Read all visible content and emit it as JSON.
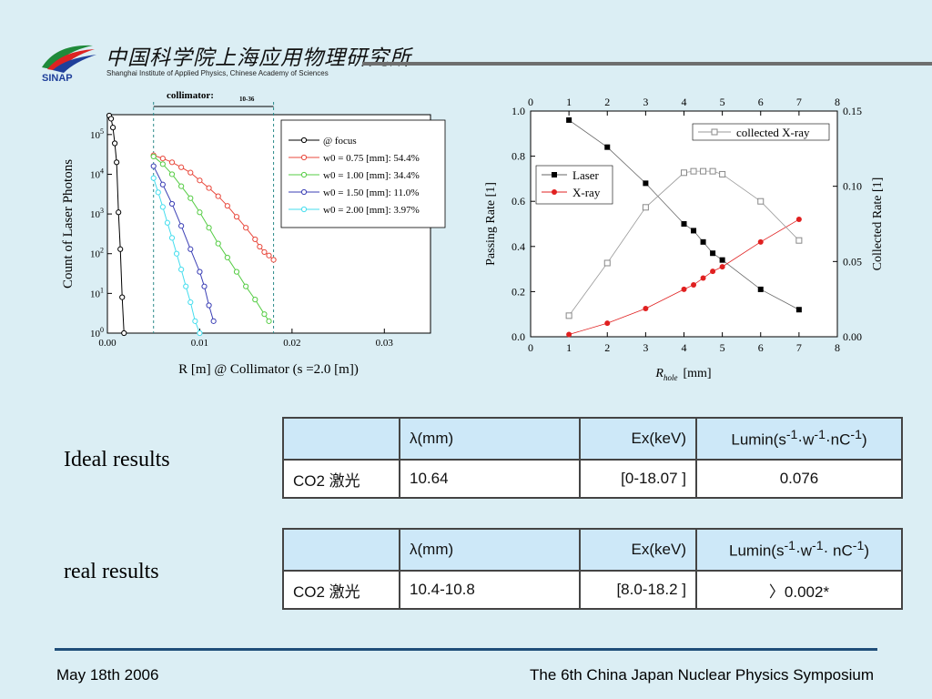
{
  "header": {
    "logo_text": "SINAP",
    "institute_cn": "中国科学院上海应用物理研究所",
    "institute_en": "Shanghai Institute of Applied Physics, Chinese Academy of Sciences"
  },
  "colors": {
    "background": "#dbeef4",
    "table_header": "#cde8f8",
    "footer_line": "#1f4e79",
    "header_line": "#6e6e6e"
  },
  "chart_data": [
    {
      "type": "scatter",
      "title": "",
      "annotation": "collimator:",
      "annotation_sub": "10-36",
      "xlabel": "R [m] @ Collimator (s =2.0 [m])",
      "ylabel": "Count of Laser Photons",
      "xlim": [
        0,
        0.035
      ],
      "ylim": [
        1,
        300000
      ],
      "yscale": "log",
      "xticks": [
        "0.00",
        "0.01",
        "0.02",
        "0.03"
      ],
      "yticks": [
        "10^0",
        "10^1",
        "10^2",
        "10^3",
        "10^4",
        "10^5"
      ],
      "vertical_lines_x": [
        0.005,
        0.018
      ],
      "legend_position": "top-right",
      "series": [
        {
          "name": "@ focus",
          "color": "#000000",
          "x": [
            0.0002,
            0.0004,
            0.0006,
            0.0008,
            0.001,
            0.0012,
            0.0014,
            0.0016,
            0.0018
          ],
          "y": [
            300000,
            250000,
            150000,
            60000,
            20000,
            1100,
            130,
            8,
            1
          ]
        },
        {
          "name": "w0 = 0.75 [mm]: 54.4%",
          "color": "#e8483c",
          "x": [
            0.005,
            0.006,
            0.007,
            0.008,
            0.009,
            0.01,
            0.011,
            0.012,
            0.013,
            0.014,
            0.015,
            0.016,
            0.0165,
            0.017,
            0.0175,
            0.018
          ],
          "y": [
            30000,
            25000,
            20000,
            15000,
            11000,
            7000,
            4500,
            2800,
            1600,
            850,
            450,
            230,
            150,
            110,
            90,
            70
          ]
        },
        {
          "name": "w0 = 1.00 [mm]: 34.4%",
          "color": "#55cc44",
          "x": [
            0.005,
            0.006,
            0.007,
            0.008,
            0.009,
            0.01,
            0.011,
            0.012,
            0.013,
            0.014,
            0.015,
            0.016,
            0.017,
            0.0175
          ],
          "y": [
            28000,
            18000,
            10000,
            5000,
            2500,
            1100,
            450,
            180,
            80,
            35,
            15,
            7,
            3,
            2
          ]
        },
        {
          "name": "w0 = 1.50 [mm]: 11.0%",
          "color": "#3b3fb5",
          "x": [
            0.005,
            0.006,
            0.007,
            0.008,
            0.009,
            0.01,
            0.0105,
            0.011,
            0.0115
          ],
          "y": [
            16000,
            5500,
            1800,
            500,
            130,
            35,
            15,
            5,
            2
          ]
        },
        {
          "name": "w0 = 2.00 [mm]: 3.97%",
          "color": "#44ddee",
          "x": [
            0.005,
            0.0055,
            0.006,
            0.0065,
            0.007,
            0.0075,
            0.008,
            0.0085,
            0.009,
            0.0095,
            0.01
          ],
          "y": [
            8000,
            3500,
            1500,
            600,
            250,
            100,
            40,
            15,
            6,
            2,
            1
          ]
        }
      ]
    },
    {
      "type": "line",
      "title": "",
      "xlabel": "Rhole [mm]",
      "xlabel_main": "R",
      "xlabel_sub": "hole",
      "xlabel_unit": "[mm]",
      "ylabel": "Passing Rate [1]",
      "ylabel_right": "Collected Rate [1]",
      "xlim": [
        0,
        8
      ],
      "ylim": [
        0,
        1.0
      ],
      "ylim_right": [
        0,
        0.15
      ],
      "xticks": [
        "0",
        "1",
        "2",
        "3",
        "4",
        "5",
        "6",
        "7",
        "8"
      ],
      "yticks": [
        "0.0",
        "0.2",
        "0.4",
        "0.6",
        "0.8",
        "1.0"
      ],
      "yticks_right": [
        "0.00",
        "0.05",
        "0.10",
        "0.15"
      ],
      "series": [
        {
          "name": "Laser",
          "axis": "left",
          "color": "#000000",
          "marker": "square-filled",
          "x": [
            1,
            2,
            3,
            4,
            4.25,
            4.5,
            4.75,
            5,
            6,
            7
          ],
          "y": [
            0.96,
            0.84,
            0.68,
            0.5,
            0.47,
            0.42,
            0.37,
            0.34,
            0.21,
            0.12
          ]
        },
        {
          "name": "X-ray",
          "axis": "left",
          "color": "#e02020",
          "marker": "circle-filled",
          "x": [
            1,
            2,
            3,
            4,
            4.25,
            4.5,
            4.75,
            5,
            6,
            7
          ],
          "y": [
            0.01,
            0.06,
            0.125,
            0.21,
            0.23,
            0.26,
            0.29,
            0.31,
            0.42,
            0.52
          ]
        },
        {
          "name": "collected X-ray",
          "axis": "right",
          "color": "#888888",
          "marker": "square-open",
          "x": [
            1,
            2,
            3,
            4,
            4.25,
            4.5,
            4.75,
            5,
            6,
            7
          ],
          "y": [
            0.014,
            0.049,
            0.086,
            0.109,
            0.11,
            0.11,
            0.11,
            0.108,
            0.09,
            0.064
          ]
        }
      ]
    }
  ],
  "results": {
    "ideal_label": "Ideal results",
    "real_label": "real results",
    "headers": [
      "",
      "λ(mm)",
      "Ex(keV)",
      "Lumin(s-1·w-1·nC-1)"
    ],
    "ideal_row": [
      "CO2 激光",
      "10.64",
      "[0-18.07 ]",
      "0.076"
    ],
    "real_row": [
      "CO2 激光",
      "10.4-10.8",
      "[8.0-18.2 ]",
      "〉0.002*"
    ]
  },
  "footer": {
    "date": "May 18th 2006",
    "event": "The 6th China Japan Nuclear Physics Symposium"
  }
}
